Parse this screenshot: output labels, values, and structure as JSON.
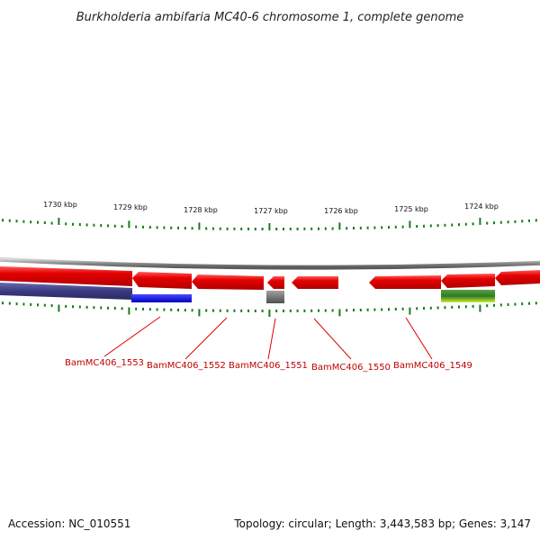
{
  "title": "Burkholderia ambifaria MC40-6 chromosome 1, complete genome",
  "scale": {
    "ticks": [
      {
        "label": "1730 kbp"
      },
      {
        "label": "1729 kbp"
      },
      {
        "label": "1728 kbp"
      },
      {
        "label": "1727 kbp"
      },
      {
        "label": "1726 kbp"
      },
      {
        "label": "1725 kbp"
      },
      {
        "label": "1724 kbp"
      }
    ]
  },
  "genes": [
    {
      "label": "BamMC406_1553"
    },
    {
      "label": "BamMC406_1552"
    },
    {
      "label": "BamMC406_1551"
    },
    {
      "label": "BamMC406_1550"
    },
    {
      "label": "BamMC406_1549"
    }
  ],
  "footer": {
    "accession": "Accession: NC_010551",
    "summary": "Topology: circular; Length: 3,443,583 bp; Genes: 3,147"
  },
  "colors": {
    "gene_forward": "#e00000",
    "backbone": "#8a8a8a",
    "tick": "#1a7a1a",
    "label_line": "#e00000",
    "label_text": "#c00000",
    "cog_navy": "#3a3a80",
    "cog_blue": "#1010e0",
    "cog_gray": "#707070",
    "cog_green": "#3a8a2a",
    "cog_lime": "#b8e020"
  }
}
